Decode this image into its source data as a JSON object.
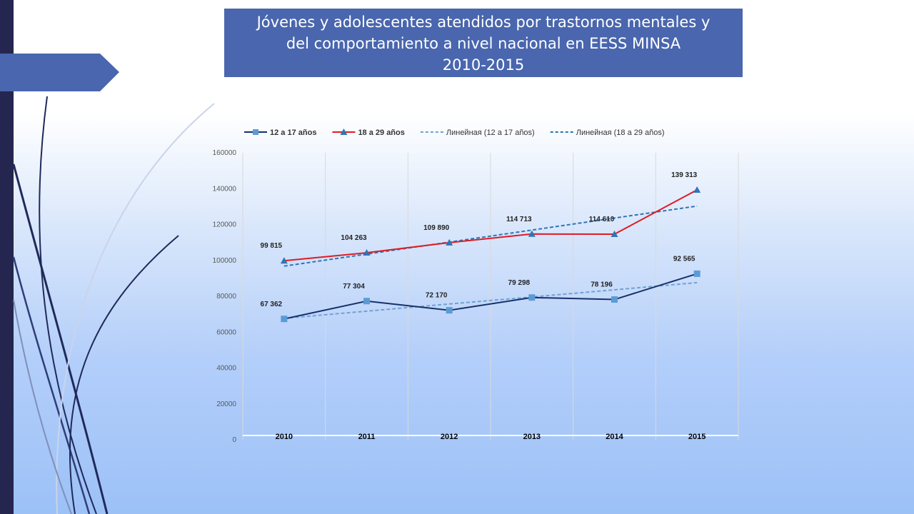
{
  "title": {
    "lines": [
      "Jóvenes y adolescentes atendidos por trastornos mentales y",
      "del comportamiento a nivel nacional en EESS MINSA",
      "2010-2015"
    ]
  },
  "colors": {
    "title_bg": "#4966ae",
    "series_12_17": "#16306b",
    "series_18_29": "#e01b24",
    "marker_12_17": "#5b9bd5",
    "marker_18_29": "#2e75b6",
    "trend_12_17": "#6fa2d3",
    "trend_18_29": "#2e75b6"
  },
  "chart_data": {
    "type": "line",
    "categories": [
      "2010",
      "2011",
      "2012",
      "2013",
      "2014",
      "2015"
    ],
    "ylim": [
      0,
      160000
    ],
    "yticks": [
      0,
      20000,
      40000,
      60000,
      80000,
      100000,
      120000,
      140000,
      160000
    ],
    "grid": "vertical",
    "legend_position": "top",
    "series": [
      {
        "name": "12 a 17 años",
        "values": [
          67362,
          77304,
          72170,
          79298,
          78196,
          92565
        ],
        "labels": [
          "67 362",
          "77 304",
          "72 170",
          "79 298",
          "78 196",
          "92 565"
        ],
        "marker": "square"
      },
      {
        "name": "18 a 29 años",
        "values": [
          99815,
          104263,
          109890,
          114713,
          114610,
          139313
        ],
        "labels": [
          "99 815",
          "104 263",
          "109 890",
          "114 713",
          "114 610",
          "139 313"
        ],
        "marker": "triangle"
      }
    ],
    "trendlines": [
      {
        "name": "Линейная (12 а 17 años)",
        "of_series": "12 a 17 años",
        "values": [
          67700,
          71700,
          75700,
          79600,
          83600,
          87600
        ]
      },
      {
        "name": "Линейная (18 а 29 años)",
        "of_series": "18 a 29 años",
        "values": [
          96800,
          103500,
          110200,
          116900,
          123600,
          130300
        ]
      }
    ]
  }
}
